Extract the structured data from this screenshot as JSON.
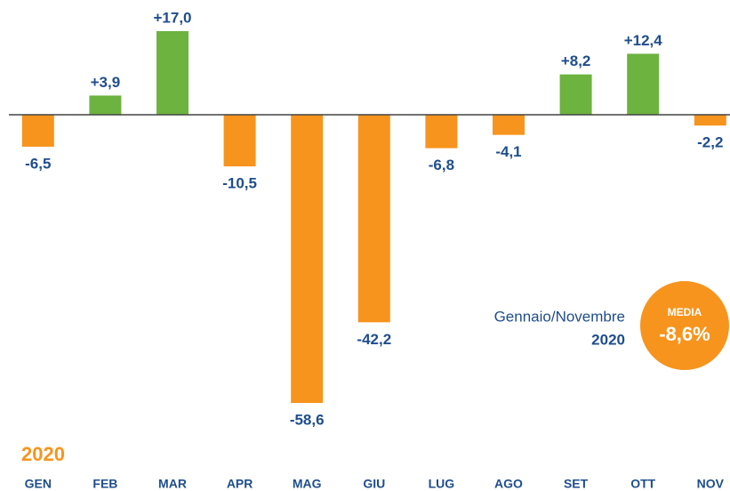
{
  "chart_data": {
    "type": "bar",
    "categories": [
      "GEN",
      "FEB",
      "MAR",
      "APR",
      "MAG",
      "GIU",
      "LUG",
      "AGO",
      "SET",
      "OTT",
      "NOV"
    ],
    "values": [
      -6.5,
      3.9,
      17.0,
      -10.5,
      -58.6,
      -42.2,
      -6.8,
      -4.1,
      8.2,
      12.4,
      -2.2
    ],
    "value_labels": [
      "-6,5",
      "+3,9",
      "+17,0",
      "-10,5",
      "-58,6",
      "-42,2",
      "-6,8",
      "-4,1",
      "+8,2",
      "+12,4",
      "-2,2"
    ],
    "positive_color": "#6db33f",
    "negative_color": "#f7941d",
    "year_label": "2020",
    "period_text": "Gennaio/Novembre",
    "period_year": "2020",
    "average_title": "MEDIA",
    "average_value": "-8,6%"
  }
}
